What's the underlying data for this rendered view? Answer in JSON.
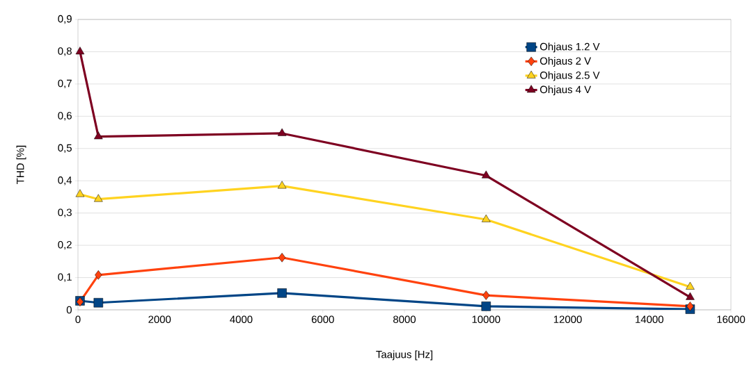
{
  "chart_data": {
    "type": "line",
    "xlabel": "Taajuus [Hz]",
    "ylabel": "THD [%]",
    "x": [
      50,
      500,
      5000,
      10000,
      15000
    ],
    "series": [
      {
        "name": "Ohjaus 1.2 V",
        "color": "#004586",
        "marker": "square",
        "values": [
          0.028,
          0.022,
          0.052,
          0.011,
          0.002
        ]
      },
      {
        "name": "Ohjaus 2 V",
        "color": "#ff420e",
        "marker": "diamond",
        "values": [
          0.025,
          0.108,
          0.162,
          0.045,
          0.011
        ]
      },
      {
        "name": "Ohjaus 2.5 V",
        "color": "#ffd320",
        "marker": "triangle-down",
        "values": [
          0.358,
          0.343,
          0.384,
          0.28,
          0.071
        ]
      },
      {
        "name": "Ohjaus 4 V",
        "color": "#7e0021",
        "marker": "triangle",
        "values": [
          0.8,
          0.537,
          0.547,
          0.416,
          0.039
        ]
      }
    ],
    "xlim": [
      0,
      16000
    ],
    "xticks": [
      0,
      2000,
      4000,
      6000,
      8000,
      10000,
      12000,
      14000,
      16000
    ],
    "ylim": [
      0,
      0.9
    ],
    "yticks": [
      0,
      {
        "value": 0.1,
        "label": "0,1"
      },
      {
        "value": 0.2,
        "label": "0,2"
      },
      {
        "value": 0.3,
        "label": "0,3"
      },
      {
        "value": 0.4,
        "label": "0,4"
      },
      {
        "value": 0.5,
        "label": "0,5"
      },
      {
        "value": 0.6,
        "label": "0,6"
      },
      {
        "value": 0.7,
        "label": "0,7"
      },
      {
        "value": 0.8,
        "label": "0,8"
      },
      {
        "value": 0.9,
        "label": "0,9"
      }
    ],
    "grid": "y",
    "legend": "top right",
    "line_style": "solid"
  }
}
